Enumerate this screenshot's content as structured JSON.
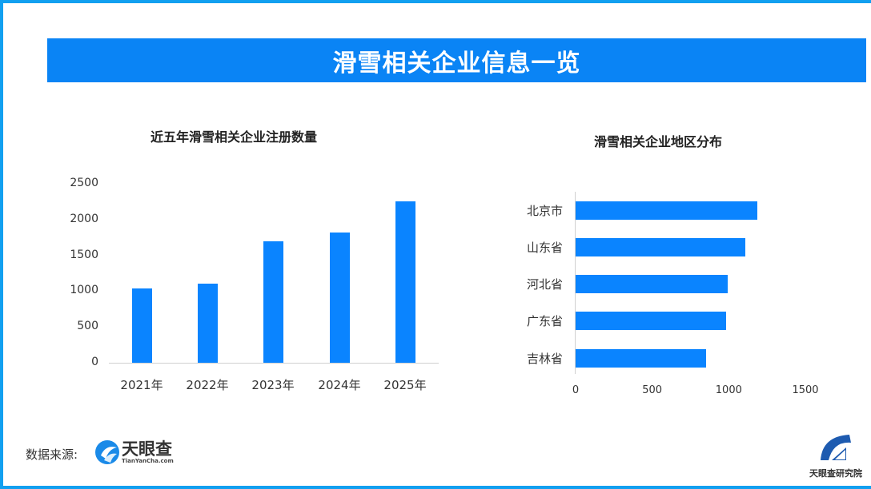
{
  "header": {
    "title": "滑雪相关企业信息一览"
  },
  "colors": {
    "accent": "#0a84f5",
    "bar": "#0a84ff",
    "frame": "#12a0f0"
  },
  "left_chart": {
    "title": "近五年滑雪相关企业注册数量",
    "y_ticks": [
      "2500",
      "2000",
      "1500",
      "1000",
      "500",
      "0"
    ],
    "x_labels": [
      "2021年",
      "2022年",
      "2023年",
      "2024年",
      "2025年"
    ]
  },
  "right_chart": {
    "title": "滑雪相关企业地区分布",
    "y_labels": [
      "北京市",
      "山东省",
      "河北省",
      "广东省",
      "吉林省"
    ],
    "x_ticks": [
      "0",
      "500",
      "1000",
      "1500"
    ]
  },
  "footer": {
    "source_label": "数据来源:",
    "tyc_logo_cn": "天眼查",
    "tyc_logo_en": "TianYanCha.com",
    "institute_name": "天眼查研究院"
  },
  "chart_data": [
    {
      "type": "bar",
      "title": "近五年滑雪相关企业注册数量",
      "categories": [
        "2021年",
        "2022年",
        "2023年",
        "2024年",
        "2025年"
      ],
      "values": [
        1040,
        1105,
        1695,
        1820,
        2255
      ],
      "xlabel": "",
      "ylabel": "",
      "ylim": [
        0,
        2500
      ],
      "yticks": [
        0,
        500,
        1000,
        1500,
        2000,
        2500
      ],
      "grid": false,
      "legend": "none"
    },
    {
      "type": "bar",
      "orientation": "horizontal",
      "title": "滑雪相关企业地区分布",
      "categories": [
        "北京市",
        "山东省",
        "河北省",
        "广东省",
        "吉林省"
      ],
      "values": [
        1188,
        1110,
        995,
        984,
        853
      ],
      "xlabel": "",
      "ylabel": "",
      "xlim": [
        0,
        1500
      ],
      "xticks": [
        0,
        500,
        1000,
        1500
      ],
      "grid": false,
      "legend": "none"
    }
  ]
}
